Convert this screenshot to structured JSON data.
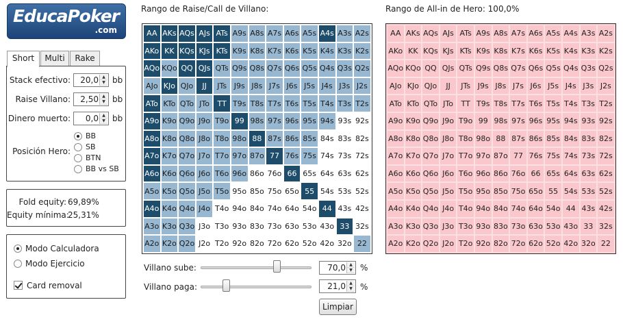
{
  "logo": {
    "text_a": "Educa",
    "text_b": "Poker",
    "suffix": ".com"
  },
  "tabs": [
    {
      "label": "Short",
      "active": true
    },
    {
      "label": "Multi",
      "active": false
    },
    {
      "label": "Rake",
      "active": false
    }
  ],
  "inputs": {
    "stack": {
      "label": "Stack efectivo:",
      "value": "20,0",
      "unit": "bb"
    },
    "raise": {
      "label": "Raise Villano:",
      "value": "2,50",
      "unit": "bb"
    },
    "dead": {
      "label": "Dinero muerto:",
      "value": "0,0",
      "unit": "bb"
    }
  },
  "position": {
    "label": "Posición Hero:",
    "options": [
      "BB",
      "SB",
      "BTN",
      "BB vs SB"
    ],
    "selected": "BB"
  },
  "equity": {
    "fold_label": "Fold equity:",
    "fold_value": "69,89%",
    "min_label": "Equity mínima:",
    "min_value": "25,31%"
  },
  "mode": {
    "calc": "Modo Calculadora",
    "exercise": "Modo Ejercicio",
    "selected": "calc",
    "card_removal": "Card removal",
    "card_removal_checked": true
  },
  "villain": {
    "title": "Rango de Raise/Call de Villano:"
  },
  "hero": {
    "title": "Rango de All-in de Hero: 100,0%"
  },
  "hands": [
    [
      "AA",
      "AKs",
      "AQs",
      "AJs",
      "ATs",
      "A9s",
      "A8s",
      "A7s",
      "A6s",
      "A5s",
      "A4s",
      "A3s",
      "A2s"
    ],
    [
      "AKo",
      "KK",
      "KQs",
      "KJs",
      "KTs",
      "K9s",
      "K8s",
      "K7s",
      "K6s",
      "K5s",
      "K4s",
      "K3s",
      "K2s"
    ],
    [
      "AQo",
      "KQo",
      "QQ",
      "QJs",
      "QTs",
      "Q9s",
      "Q8s",
      "Q7s",
      "Q6s",
      "Q5s",
      "Q4s",
      "Q3s",
      "Q2s"
    ],
    [
      "AJo",
      "KJo",
      "QJo",
      "JJ",
      "JTs",
      "J9s",
      "J8s",
      "J7s",
      "J6s",
      "J5s",
      "J4s",
      "J3s",
      "J2s"
    ],
    [
      "ATo",
      "KTo",
      "QTo",
      "JTo",
      "TT",
      "T9s",
      "T8s",
      "T7s",
      "T6s",
      "T5s",
      "T4s",
      "T3s",
      "T2s"
    ],
    [
      "A9o",
      "K9o",
      "Q9o",
      "J9o",
      "T9o",
      "99",
      "98s",
      "97s",
      "96s",
      "95s",
      "94s",
      "93s",
      "92s"
    ],
    [
      "A8o",
      "K8o",
      "Q8o",
      "J8o",
      "T8o",
      "98o",
      "88",
      "87s",
      "86s",
      "85s",
      "84s",
      "83s",
      "82s"
    ],
    [
      "A7o",
      "K7o",
      "Q7o",
      "J7o",
      "T7o",
      "97o",
      "87o",
      "77",
      "76s",
      "75s",
      "74s",
      "73s",
      "72s"
    ],
    [
      "A6o",
      "K6o",
      "Q6o",
      "J6o",
      "T6o",
      "96o",
      "86o",
      "76o",
      "66",
      "65s",
      "64s",
      "63s",
      "62s"
    ],
    [
      "A5o",
      "K5o",
      "Q5o",
      "J5o",
      "T5o",
      "95o",
      "85o",
      "75o",
      "65o",
      "55",
      "54s",
      "53s",
      "52s"
    ],
    [
      "A4o",
      "K4o",
      "Q4o",
      "J4o",
      "T4o",
      "94o",
      "84o",
      "74o",
      "64o",
      "54o",
      "44",
      "43s",
      "42s"
    ],
    [
      "A3o",
      "K3o",
      "Q3o",
      "J3o",
      "T3o",
      "93o",
      "83o",
      "73o",
      "63o",
      "53o",
      "43o",
      "33",
      "32s"
    ],
    [
      "A2o",
      "K2o",
      "Q2o",
      "J2o",
      "T2o",
      "92o",
      "82o",
      "72o",
      "62o",
      "52o",
      "42o",
      "32o",
      "22"
    ]
  ],
  "villain_states": [
    "RRRRRCCCCCRCC",
    "RRRRRCCCCCCCC",
    "RCRRCCCCCCCCC",
    "CRCRCCCCCCCCC",
    "RCCCRCCCCCCCC",
    "RCCCCRCCCCCFF",
    "RCCCCCRCCCFFF",
    "RCCCCCCRCCFFF",
    "RCCCCCFFRFFFF",
    "CCCCCFFFFRFFF",
    "RCCCFFFFFFRFF",
    "CCCFFFFFFFFRF",
    "CCCFFFFFFFFFC"
  ],
  "sliders": {
    "raise": {
      "label": "Villano sube:",
      "value": "70,0",
      "percent": 70,
      "unit": "%"
    },
    "call": {
      "label": "Villano paga:",
      "value": "21,0",
      "percent": 21,
      "unit": "%"
    }
  },
  "clear_button": "Limpiar"
}
